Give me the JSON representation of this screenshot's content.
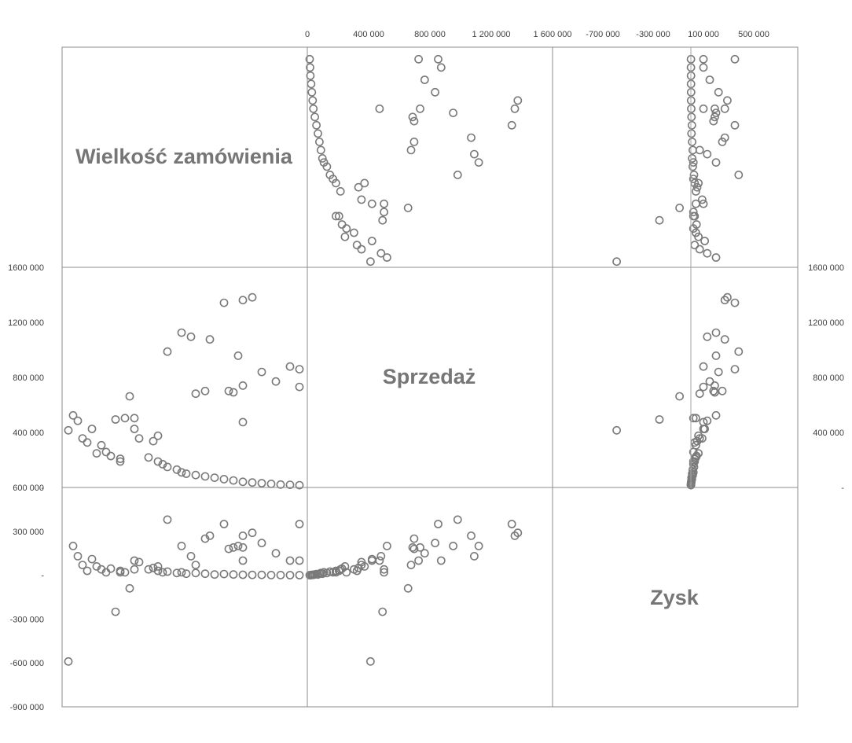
{
  "chart_data": {
    "type": "scatter_matrix",
    "variables": [
      "Wielkość zamówienia",
      "Sprzedaż",
      "Zysk"
    ],
    "axes": {
      "sales": {
        "range": [
          0,
          1600000
        ],
        "ticks": [
          0,
          400000,
          800000,
          1200000,
          1600000
        ],
        "tick_labels_x": [
          "0",
          "400 000",
          "800 000",
          "1 200 000",
          "1 600 000"
        ],
        "tick_labels_y": [
          "1600 000",
          "1200 000",
          "800 000",
          "400 000",
          "-"
        ]
      },
      "profit": {
        "range": [
          -900000,
          600000
        ],
        "ticks": [
          600000,
          300000,
          0,
          -300000,
          -600000,
          -900000
        ],
        "tick_labels_y": [
          "600 000",
          "300 000",
          "-",
          "-300 000",
          "-600 000",
          "-900 000"
        ],
        "tick_labels_x": [
          "-700 000",
          "-300 000",
          "100 000",
          "500 000"
        ],
        "tick_values_x": [
          -700000,
          -300000,
          100000,
          500000
        ]
      },
      "sales_right_tick_labels": [
        "1600 000",
        "1200 000",
        "800 000",
        "400 000",
        "-"
      ]
    },
    "points": [
      {
        "order": 40,
        "sales": 1390000,
        "profit": 290000
      },
      {
        "order": 38,
        "sales": 1370000,
        "profit": 270000
      },
      {
        "order": 34,
        "sales": 1350000,
        "profit": 350000
      },
      {
        "order": 25,
        "sales": 1130000,
        "profit": 200000
      },
      {
        "order": 27,
        "sales": 1100000,
        "profit": 130000
      },
      {
        "order": 31,
        "sales": 1080000,
        "profit": 270000
      },
      {
        "order": 22,
        "sales": 990000,
        "profit": 380000
      },
      {
        "order": 37,
        "sales": 960000,
        "profit": 200000
      },
      {
        "order": 48,
        "sales": 880000,
        "profit": 100000
      },
      {
        "order": 50,
        "sales": 860000,
        "profit": 350000
      },
      {
        "order": 42,
        "sales": 840000,
        "profit": 220000
      },
      {
        "order": 45,
        "sales": 770000,
        "profit": 150000
      },
      {
        "order": 38,
        "sales": 740000,
        "profit": 190000
      },
      {
        "order": 50,
        "sales": 730000,
        "profit": 100000
      },
      {
        "order": 35,
        "sales": 700000,
        "profit": 180000
      },
      {
        "order": 30,
        "sales": 700000,
        "profit": 250000
      },
      {
        "order": 36,
        "sales": 690000,
        "profit": 190000
      },
      {
        "order": 28,
        "sales": 680000,
        "profit": 70000
      },
      {
        "order": 14,
        "sales": 660000,
        "profit": -90000
      },
      {
        "order": 15,
        "sales": 500000,
        "profit": 40000
      },
      {
        "order": 13,
        "sales": 500000,
        "profit": 20000
      },
      {
        "order": 11,
        "sales": 490000,
        "profit": -250000
      },
      {
        "order": 38,
        "sales": 470000,
        "profit": 100000
      },
      {
        "order": 15,
        "sales": 420000,
        "profit": 100000
      },
      {
        "order": 1,
        "sales": 410000,
        "profit": -590000
      },
      {
        "order": 16,
        "sales": 350000,
        "profit": 90000
      },
      {
        "order": 20,
        "sales": 370000,
        "profit": 60000
      },
      {
        "order": 19,
        "sales": 330000,
        "profit": 50000
      },
      {
        "order": 6,
        "sales": 420000,
        "profit": 110000
      },
      {
        "order": 2,
        "sales": 520000,
        "profit": 200000
      },
      {
        "order": 3,
        "sales": 480000,
        "profit": 130000
      },
      {
        "order": 4,
        "sales": 350000,
        "profit": 70000
      },
      {
        "order": 5,
        "sales": 320000,
        "profit": 30000
      },
      {
        "order": 8,
        "sales": 300000,
        "profit": 40000
      },
      {
        "order": 9,
        "sales": 250000,
        "profit": 20000
      },
      {
        "order": 7,
        "sales": 240000,
        "profit": 60000
      },
      {
        "order": 10,
        "sales": 220000,
        "profit": 45000
      },
      {
        "order": 12,
        "sales": 200000,
        "profit": 30000
      },
      {
        "order": 12,
        "sales": 180000,
        "profit": 20000
      },
      {
        "order": 18,
        "sales": 210000,
        "profit": 40000
      },
      {
        "order": 20,
        "sales": 180000,
        "profit": 30000
      },
      {
        "order": 21,
        "sales": 160000,
        "profit": 20000
      },
      {
        "order": 22,
        "sales": 140000,
        "profit": 25000
      },
      {
        "order": 24,
        "sales": 120000,
        "profit": 15000
      },
      {
        "order": 25,
        "sales": 100000,
        "profit": 20000
      },
      {
        "order": 26,
        "sales": 90000,
        "profit": 10000
      },
      {
        "order": 28,
        "sales": 80000,
        "profit": 15000
      },
      {
        "order": 30,
        "sales": 70000,
        "profit": 10000
      },
      {
        "order": 32,
        "sales": 60000,
        "profit": 5000
      },
      {
        "order": 34,
        "sales": 50000,
        "profit": 8000
      },
      {
        "order": 36,
        "sales": 40000,
        "profit": 5000
      },
      {
        "order": 38,
        "sales": 30000,
        "profit": 3000
      },
      {
        "order": 40,
        "sales": 25000,
        "profit": 2000
      },
      {
        "order": 42,
        "sales": 20000,
        "profit": 2000
      },
      {
        "order": 44,
        "sales": 15000,
        "profit": 1000
      },
      {
        "order": 46,
        "sales": 10000,
        "profit": 1000
      },
      {
        "order": 48,
        "sales": 8000,
        "profit": 500
      },
      {
        "order": 50,
        "sales": 5000,
        "profit": 500
      }
    ]
  }
}
